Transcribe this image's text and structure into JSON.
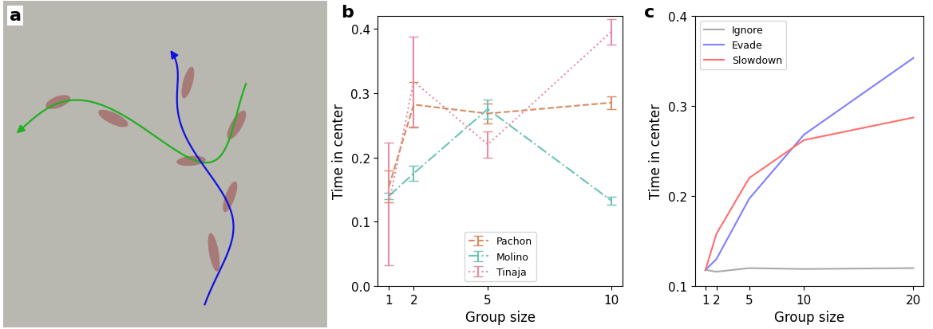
{
  "chart_data": [
    {
      "type": "image",
      "title": "a"
    },
    {
      "type": "line",
      "title": "b",
      "x_label": "Group size",
      "y_label": "Time in center",
      "x": [
        1,
        2,
        5,
        10
      ],
      "xlim": [
        0.55,
        10.45
      ],
      "xticks": [
        1,
        2,
        5,
        10
      ],
      "ylim": [
        0,
        0.42
      ],
      "yticks": [
        {
          "value": 0,
          "label": "0.0"
        },
        0.1,
        0.2,
        0.3,
        0.4
      ],
      "legend": "lower center",
      "series": [
        {
          "name": "Pachon",
          "color": "#d98b5f",
          "line_style": "dashed",
          "values": [
            0.155,
            0.282,
            0.268,
            0.285
          ],
          "errors": [
            0.025,
            0.035,
            0.015,
            0.01
          ]
        },
        {
          "name": "Molino",
          "color": "#6cc3b5",
          "line_style": "dashdot",
          "values": [
            0.14,
            0.175,
            0.275,
            0.133
          ],
          "errors": [
            0.005,
            0.012,
            0.015,
            0.006
          ]
        },
        {
          "name": "Tinaja",
          "color": "#e78ba0",
          "line_style": "dotted",
          "values": [
            0.128,
            0.318,
            0.22,
            0.395
          ],
          "errors": [
            0.095,
            0.07,
            0.02,
            0.02
          ]
        }
      ]
    },
    {
      "type": "line",
      "title": "c",
      "x_label": "Group size",
      "y_label": "Time in center",
      "x": [
        1,
        2,
        5,
        10,
        20
      ],
      "xlim": [
        0.05,
        20.95
      ],
      "xticks": [
        1,
        2,
        5,
        10,
        20
      ],
      "ylim": [
        0.1,
        0.4
      ],
      "yticks": [
        0.1,
        0.2,
        0.3,
        0.4
      ],
      "legend": "upper left",
      "series": [
        {
          "name": "Ignore",
          "color": "#aaaaaa",
          "line_style": "solid",
          "values": [
            0.118,
            0.116,
            0.12,
            0.119,
            0.12
          ]
        },
        {
          "name": "Evade",
          "color": "#7f7fff",
          "line_style": "solid",
          "values": [
            0.118,
            0.13,
            0.197,
            0.268,
            0.353
          ]
        },
        {
          "name": "Slowdown",
          "color": "#ff6f6f",
          "line_style": "solid",
          "values": [
            0.118,
            0.158,
            0.22,
            0.262,
            0.287
          ]
        }
      ]
    }
  ]
}
